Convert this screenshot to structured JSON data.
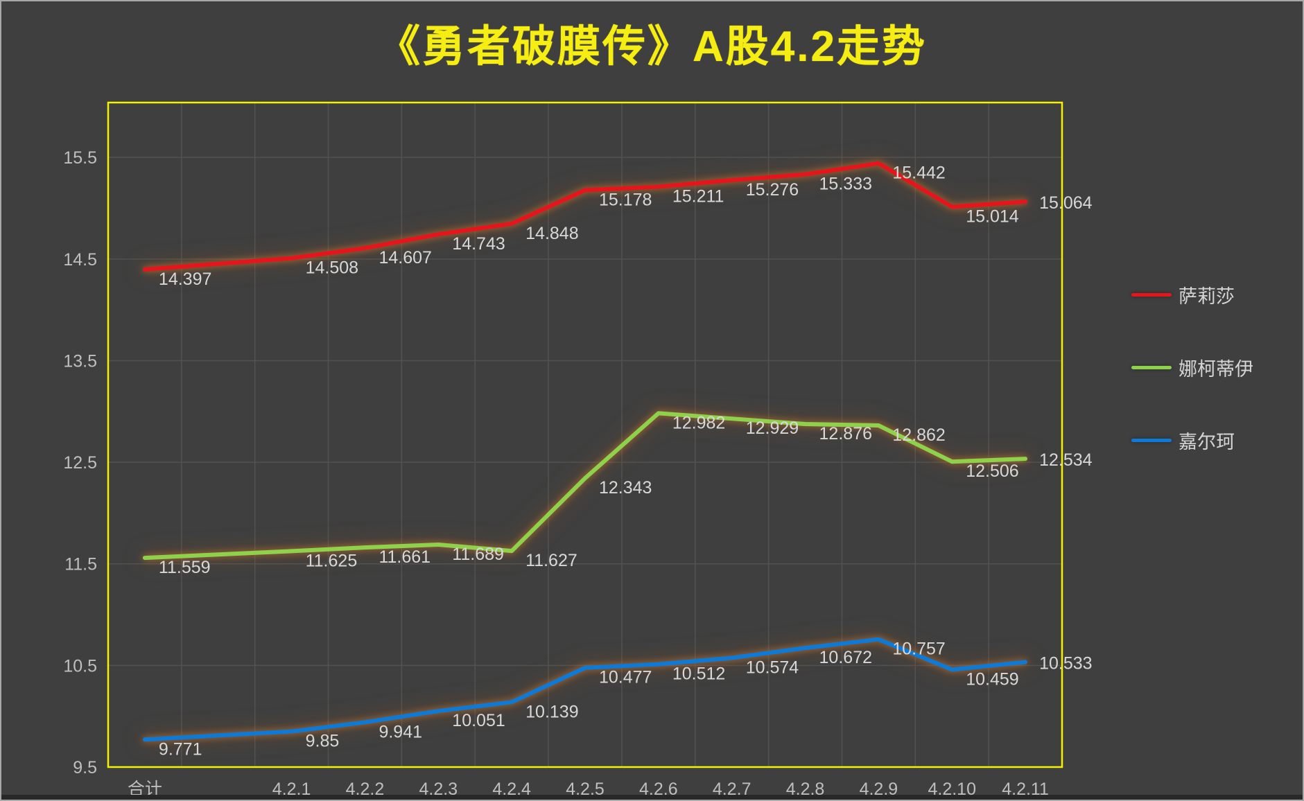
{
  "window": {
    "background": "#3f3f3f",
    "frame_border": "#a8a8a8",
    "bottom_strip": "#282828"
  },
  "title": {
    "text": "《勇者破膜传》A股4.2走势",
    "color": "#f6ee13"
  },
  "chart_data": {
    "type": "line",
    "title": "《勇者破膜传》A股4.2走势",
    "categories": [
      "合计",
      "4.2.1",
      "4.2.2",
      "4.2.3",
      "4.2.4",
      "4.2.5",
      "4.2.6",
      "4.2.7",
      "4.2.8",
      "4.2.9",
      "4.2.10",
      "4.2.11"
    ],
    "series": [
      {
        "name": "萨莉莎",
        "color": "#e8141c",
        "values": [
          14.397,
          14.508,
          14.607,
          14.743,
          14.848,
          15.178,
          15.211,
          15.276,
          15.333,
          15.442,
          15.014,
          15.064
        ]
      },
      {
        "name": "娜柯蒂伊",
        "color": "#8ed14b",
        "values": [
          11.559,
          11.625,
          11.661,
          11.689,
          11.627,
          12.343,
          12.982,
          12.929,
          12.876,
          12.862,
          12.506,
          12.534
        ]
      },
      {
        "name": "嘉尔珂",
        "color": "#0d7ad8",
        "values": [
          9.771,
          9.85,
          9.941,
          10.051,
          10.139,
          10.477,
          10.512,
          10.574,
          10.672,
          10.757,
          10.459,
          10.533
        ]
      }
    ],
    "yticks": [
      9.5,
      10.5,
      11.5,
      12.5,
      13.5,
      14.5,
      15.5
    ],
    "ylim": [
      9.5,
      16.04
    ],
    "grid": true,
    "legend_position": "right",
    "data_labels": true,
    "plot_border_color": "#f5f200",
    "gridline_color": "#525252",
    "tick_label_color": "#bfbfbf",
    "data_label_color": "#d8d8d8",
    "glow_color": "rgba(205,120,45,0.85)",
    "x_slot_indices": [
      0,
      2,
      3,
      4,
      5,
      6,
      7,
      8,
      9,
      10,
      11,
      12
    ],
    "total_slots": 13,
    "xlabel": "",
    "ylabel": ""
  }
}
